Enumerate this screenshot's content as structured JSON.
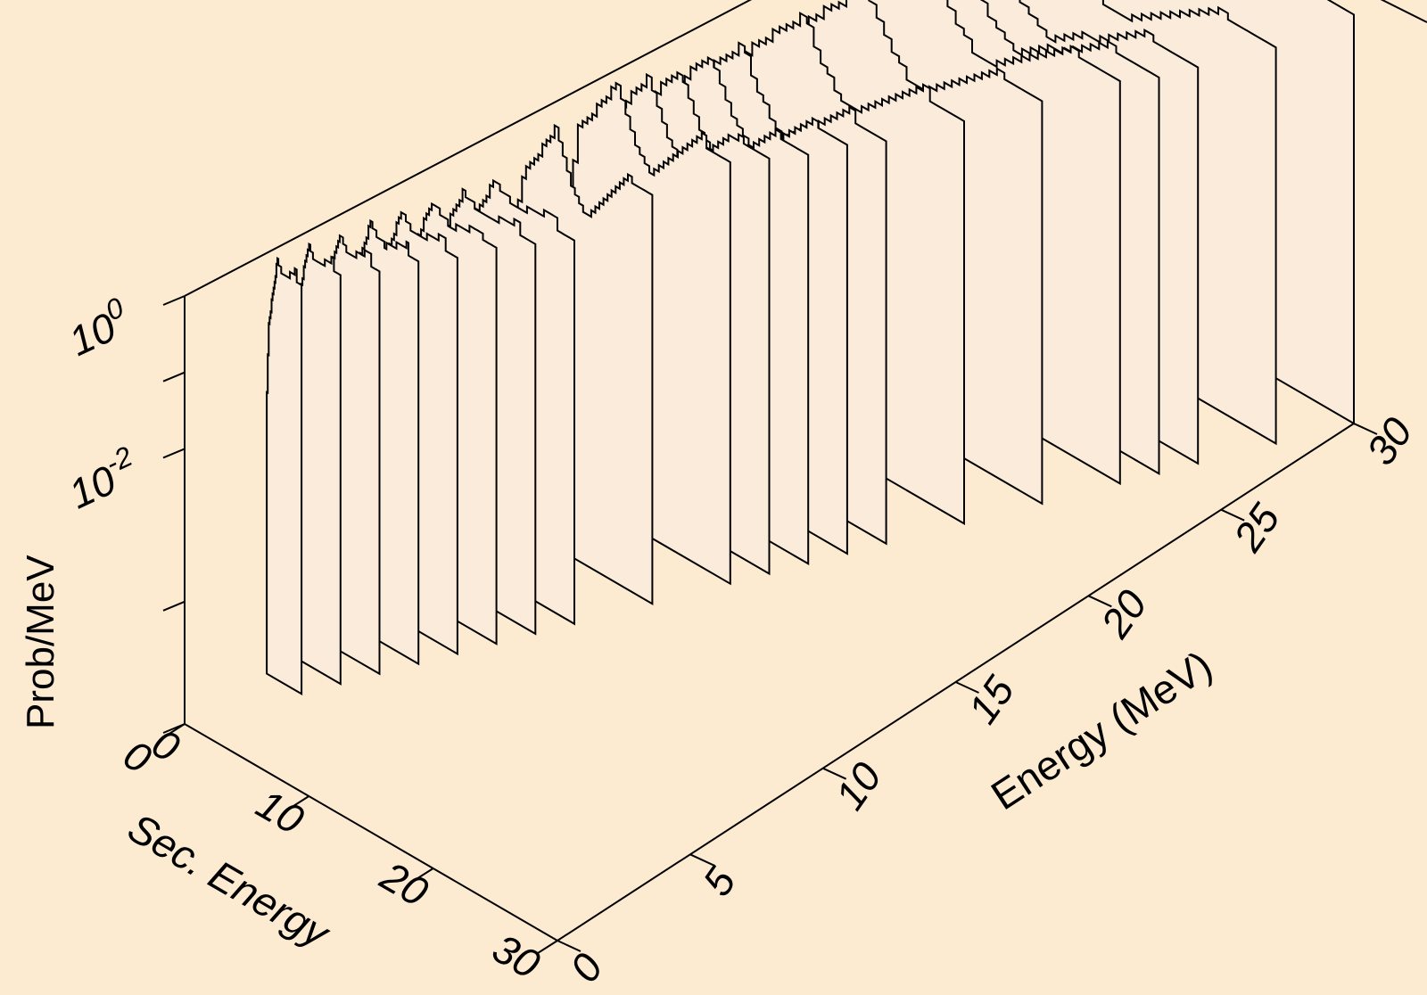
{
  "chart_data": {
    "type": "3d-waterfall",
    "zlabel": "Prob/MeV",
    "xlabel": "Energy (MeV)",
    "ylabel": "Sec. Energy",
    "z_scale": "log",
    "z_ticks": [
      {
        "value": 0,
        "text": "0"
      },
      {
        "value": 0.0001,
        "text": ""
      },
      {
        "value": 0.01,
        "base": "10",
        "exp": "-2"
      },
      {
        "value": 0.1,
        "text": ""
      },
      {
        "value": 1,
        "base": "10",
        "exp": "0"
      }
    ],
    "x_ticks": [
      "0",
      "5",
      "10",
      "15",
      "20",
      "25",
      "30"
    ],
    "x_range": [
      0,
      30
    ],
    "y_ticks": [
      "0",
      "10",
      "20",
      "30"
    ],
    "y_range": [
      0,
      30
    ],
    "colors": {
      "background": "#fdebd1",
      "slice_fill": "#faebdb",
      "line": "#000000"
    },
    "series": [
      {
        "incident_energy": 3,
        "sec_energy": [
          0.2,
          3.0
        ],
        "log10_peak": -0.1,
        "log10_tail": -3.0
      },
      {
        "incident_energy": 4,
        "sec_energy": [
          0.2,
          4.0
        ],
        "log10_peak": -0.1,
        "log10_tail": -3.0
      },
      {
        "incident_energy": 5,
        "sec_energy": [
          0.2,
          5.0
        ],
        "log10_peak": -0.15,
        "log10_tail": -3.0
      },
      {
        "incident_energy": 6,
        "sec_energy": [
          0.2,
          6.0
        ],
        "log10_peak": -0.2,
        "log10_tail": -3.0
      },
      {
        "incident_energy": 7,
        "sec_energy": [
          0.2,
          7.0
        ],
        "log10_peak": -0.25,
        "log10_tail": -3.0
      },
      {
        "incident_energy": 8,
        "sec_energy": [
          0.2,
          8.0
        ],
        "log10_peak": -0.3,
        "log10_tail": -3.0
      },
      {
        "incident_energy": 9,
        "sec_energy": [
          0.2,
          9.0
        ],
        "log10_peak": -0.35,
        "log10_tail": -3.0
      },
      {
        "incident_energy": 10,
        "sec_energy": [
          0.2,
          10.0
        ],
        "log10_peak": -0.4,
        "log10_tail": -3.0
      },
      {
        "incident_energy": 12,
        "sec_energy": [
          0.2,
          12.0
        ],
        "log10_peak": -0.1,
        "log10_tail": -3.0
      },
      {
        "incident_energy": 14,
        "sec_energy": [
          0.2,
          14.0
        ],
        "log10_peak": 0.1,
        "log10_tail": -3.0
      },
      {
        "incident_energy": 15,
        "sec_energy": [
          0.2,
          15.0
        ],
        "log10_peak": 0.0,
        "log10_tail": -3.0
      },
      {
        "incident_energy": 16,
        "sec_energy": [
          0.2,
          16.0
        ],
        "log10_peak": -0.1,
        "log10_tail": -3.0
      },
      {
        "incident_energy": 17,
        "sec_energy": [
          0.2,
          17.0
        ],
        "log10_peak": -0.1,
        "log10_tail": -3.0
      },
      {
        "incident_energy": 18,
        "sec_energy": [
          0.2,
          18.0
        ],
        "log10_peak": -0.15,
        "log10_tail": -3.0
      },
      {
        "incident_energy": 20,
        "sec_energy": [
          0.2,
          20.0
        ],
        "log10_peak": -0.15,
        "log10_tail": -3.0
      },
      {
        "incident_energy": 22,
        "sec_energy": [
          0.2,
          22.0
        ],
        "log10_peak": -0.2,
        "log10_tail": -3.0
      },
      {
        "incident_energy": 24,
        "sec_energy": [
          0.2,
          24.0
        ],
        "log10_peak": -0.2,
        "log10_tail": -3.0
      },
      {
        "incident_energy": 25,
        "sec_energy": [
          0.2,
          25.0
        ],
        "log10_peak": -0.25,
        "log10_tail": -3.0
      },
      {
        "incident_energy": 26,
        "sec_energy": [
          0.2,
          26.0
        ],
        "log10_peak": -0.25,
        "log10_tail": -3.0
      },
      {
        "incident_energy": 28,
        "sec_energy": [
          0.2,
          28.0
        ],
        "log10_peak": -0.3,
        "log10_tail": -3.0
      },
      {
        "incident_energy": 30,
        "sec_energy": [
          0.2,
          30.0
        ],
        "log10_peak": -0.1,
        "log10_tail": -3.0
      }
    ]
  }
}
